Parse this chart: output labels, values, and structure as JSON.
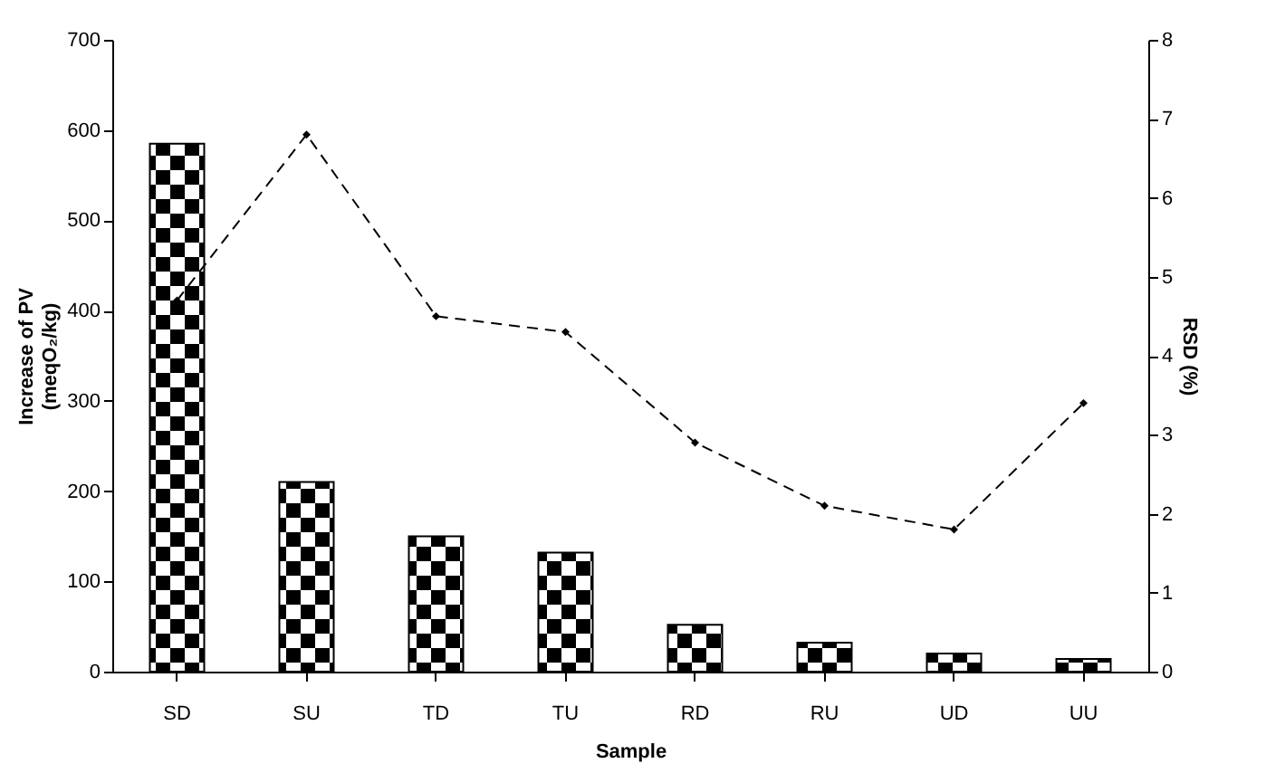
{
  "chart_data": {
    "type": "bar",
    "xlabel": "Sample",
    "ylabel": "Increase of PV\n(meqO₂/kg)",
    "y2label": "RSD (%)",
    "categories": [
      "SD",
      "SU",
      "TD",
      "TU",
      "RD",
      "RU",
      "UD",
      "UU"
    ],
    "series": [
      {
        "color": "#000000",
        "values": [
          585,
          210,
          150,
          132,
          52,
          32,
          20,
          14
        ]
      },
      {
        "type": "line",
        "axis": "y2",
        "color": "#000000",
        "values": [
          4.7,
          6.8,
          4.5,
          4.3,
          2.9,
          2.1,
          1.8,
          3.4
        ]
      }
    ],
    "ylim": [
      0,
      700
    ],
    "yticks": [
      0,
      100,
      200,
      300,
      400,
      500,
      600,
      700
    ],
    "y2lim": [
      0,
      8
    ],
    "y2ticks": [
      0,
      1,
      2,
      3,
      4,
      5,
      6,
      7,
      8
    ],
    "grid": false,
    "legend": false,
    "marker": "diamond",
    "line_style": "dashed"
  }
}
